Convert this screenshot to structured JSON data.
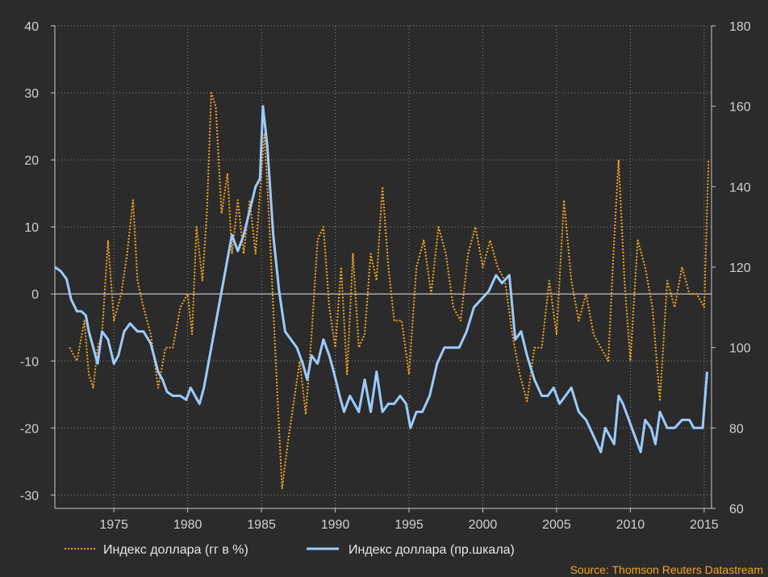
{
  "chart_data": {
    "type": "line",
    "x_ticks": [
      "1975",
      "1980",
      "1985",
      "1990",
      "1995",
      "2000",
      "2005",
      "2010",
      "2015"
    ],
    "y_left_ticks": [
      "40",
      "30",
      "20",
      "10",
      "0",
      "-10",
      "-20",
      "-30"
    ],
    "y_right_ticks": [
      "180",
      "160",
      "140",
      "120",
      "100",
      "80",
      "60"
    ],
    "ylim_left": [
      -32,
      40
    ],
    "ylim_right": [
      60,
      180
    ],
    "xlim": [
      1971.0,
      2015.5
    ],
    "grid": true,
    "zero_line": true,
    "legend_position": "bottom",
    "colors": {
      "background": "#2b2b2b",
      "yoy": "#f5a623",
      "index": "#9ccbff",
      "grid": "#8a8a8a",
      "zero_line": "#e0e0e0"
    },
    "series": [
      {
        "name": "Индекс доллара (гг в %)",
        "axis": "left",
        "style": "dotted",
        "x": [
          1972.0,
          1972.5,
          1973.0,
          1973.3,
          1973.6,
          1973.9,
          1974.2,
          1974.6,
          1975.0,
          1975.5,
          1975.9,
          1976.3,
          1976.6,
          1977.0,
          1977.5,
          1978.0,
          1978.5,
          1979.0,
          1979.5,
          1980.0,
          1980.3,
          1980.6,
          1981.0,
          1981.3,
          1981.6,
          1981.9,
          1982.3,
          1982.7,
          1983.0,
          1983.4,
          1983.8,
          1984.2,
          1984.6,
          1985.0,
          1985.2,
          1985.5,
          1985.8,
          1986.1,
          1986.4,
          1986.8,
          1987.2,
          1987.6,
          1988.0,
          1988.4,
          1988.8,
          1989.2,
          1989.6,
          1990.0,
          1990.4,
          1990.8,
          1991.2,
          1991.6,
          1992.0,
          1992.4,
          1992.8,
          1993.2,
          1993.6,
          1994.0,
          1994.5,
          1995.0,
          1995.5,
          1996.0,
          1996.5,
          1997.0,
          1997.5,
          1998.0,
          1998.5,
          1999.0,
          1999.5,
          2000.0,
          2000.5,
          2001.0,
          2001.5,
          2002.0,
          2002.5,
          2003.0,
          2003.5,
          2004.0,
          2004.5,
          2005.0,
          2005.5,
          2006.0,
          2006.5,
          2007.0,
          2007.5,
          2008.0,
          2008.5,
          2008.9,
          2009.2,
          2009.6,
          2010.0,
          2010.5,
          2011.0,
          2011.5,
          2012.0,
          2012.5,
          2013.0,
          2013.5,
          2014.0,
          2014.5,
          2015.0,
          2015.3
        ],
        "values": [
          -8,
          -10,
          -4,
          -12,
          -14,
          -8,
          -6,
          8,
          -4,
          0,
          6,
          14,
          2,
          -2,
          -6,
          -14,
          -8,
          -8,
          -2,
          0,
          -6,
          10,
          2,
          12,
          30,
          28,
          12,
          18,
          6,
          14,
          6,
          14,
          6,
          18,
          24,
          12,
          -2,
          -16,
          -29,
          -22,
          -16,
          -10,
          -18,
          -6,
          8,
          10,
          -2,
          -8,
          4,
          -12,
          6,
          -8,
          -6,
          6,
          2,
          16,
          4,
          -4,
          -4,
          -12,
          4,
          8,
          0,
          10,
          6,
          -2,
          -4,
          6,
          10,
          4,
          8,
          4,
          2,
          -6,
          -12,
          -16,
          -8,
          -8,
          2,
          -6,
          14,
          2,
          -4,
          0,
          -6,
          -8,
          -10,
          8,
          20,
          2,
          -10,
          8,
          4,
          -2,
          -16,
          2,
          -2,
          4,
          0,
          0,
          -2,
          20
        ]
      },
      {
        "name": "Индекс доллара (пр.шкала)",
        "axis": "right",
        "style": "solid",
        "x": [
          1971.0,
          1971.4,
          1971.8,
          1972.1,
          1972.5,
          1972.8,
          1973.1,
          1973.3,
          1973.6,
          1973.9,
          1974.2,
          1974.6,
          1975.0,
          1975.3,
          1975.7,
          1976.1,
          1976.6,
          1977.0,
          1977.5,
          1978.0,
          1978.3,
          1978.6,
          1979.0,
          1979.5,
          1979.9,
          1980.2,
          1980.5,
          1980.8,
          1981.1,
          1981.5,
          1981.9,
          1982.3,
          1982.7,
          1983.0,
          1983.4,
          1983.8,
          1984.2,
          1984.6,
          1984.9,
          1985.1,
          1985.4,
          1985.8,
          1986.2,
          1986.6,
          1987.0,
          1987.4,
          1987.8,
          1988.1,
          1988.4,
          1988.8,
          1989.2,
          1989.6,
          1989.9,
          1990.3,
          1990.6,
          1991.0,
          1991.3,
          1991.6,
          1992.0,
          1992.4,
          1992.8,
          1993.2,
          1993.6,
          1994.0,
          1994.4,
          1994.8,
          1995.1,
          1995.5,
          1995.9,
          1996.4,
          1996.9,
          1997.4,
          1997.9,
          1998.4,
          1998.9,
          1999.4,
          1999.9,
          2000.4,
          2000.9,
          2001.3,
          2001.8,
          2002.2,
          2002.6,
          2003.0,
          2003.5,
          2004.0,
          2004.4,
          2004.8,
          2005.2,
          2005.6,
          2006.0,
          2006.5,
          2007.0,
          2007.5,
          2008.0,
          2008.3,
          2008.6,
          2008.9,
          2009.2,
          2009.5,
          2009.9,
          2010.3,
          2010.7,
          2011.0,
          2011.4,
          2011.7,
          2012.0,
          2012.5,
          2013.0,
          2013.5,
          2014.0,
          2014.3,
          2014.6,
          2014.9,
          2015.2
        ],
        "values": [
          120,
          119,
          117,
          112,
          109,
          109,
          108,
          104,
          100,
          96,
          104,
          102,
          96,
          98,
          104,
          106,
          104,
          104,
          101,
          94,
          92,
          89,
          88,
          88,
          87,
          90,
          88,
          86,
          90,
          98,
          106,
          114,
          122,
          128,
          124,
          128,
          134,
          140,
          142,
          160,
          150,
          128,
          114,
          104,
          102,
          100,
          96,
          92,
          98,
          96,
          102,
          98,
          94,
          88,
          84,
          88,
          86,
          84,
          92,
          84,
          94,
          84,
          86,
          86,
          88,
          86,
          80,
          84,
          84,
          88,
          96,
          100,
          100,
          100,
          104,
          110,
          112,
          114,
          118,
          116,
          118,
          102,
          104,
          98,
          92,
          88,
          88,
          90,
          86,
          88,
          90,
          84,
          82,
          78,
          74,
          80,
          78,
          76,
          88,
          86,
          82,
          78,
          74,
          82,
          80,
          76,
          84,
          80,
          80,
          82,
          82,
          80,
          80,
          80,
          94
        ]
      }
    ],
    "source": "Source: Thomson Reuters Datastream"
  }
}
